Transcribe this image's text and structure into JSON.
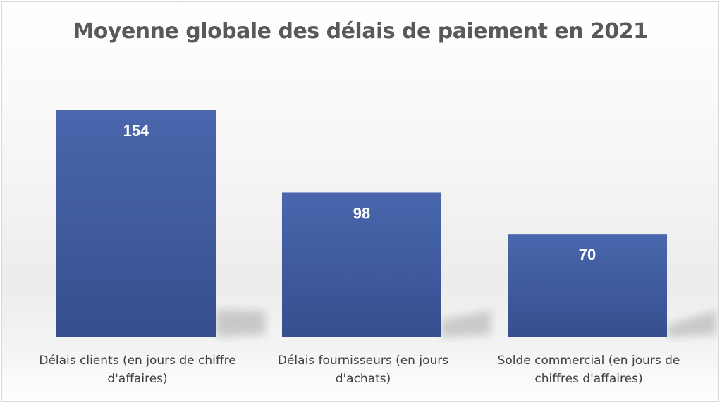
{
  "chart_data": {
    "type": "bar",
    "title": "Moyenne globale des délais de paiement en 2021",
    "categories": [
      [
        "Délais clients (en jours de chiffre",
        "d'affaires)"
      ],
      [
        "Délais fournisseurs (en jours",
        "d'achats)"
      ],
      [
        "Solde commercial (en jours de",
        "chiffres d'affaires)"
      ]
    ],
    "values": [
      154,
      98,
      70
    ],
    "data_labels": [
      "154",
      "98",
      "70"
    ],
    "ylim": [
      0,
      154
    ],
    "grid": false,
    "legend": "none",
    "colors": {
      "bar_top": "#4a67ad",
      "bar_bottom": "#354f8f",
      "shadow": "#000000"
    }
  }
}
